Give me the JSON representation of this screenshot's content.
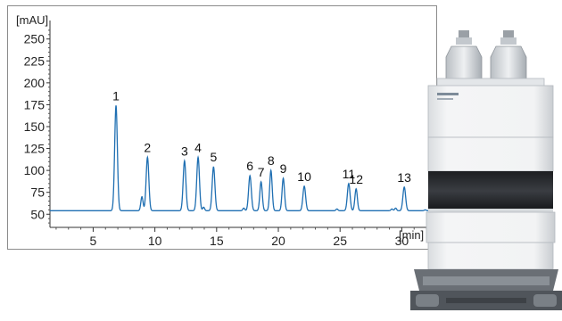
{
  "chart_data": {
    "type": "line",
    "title": "",
    "ylabel": "[mAU]",
    "xlabel": "[min]",
    "xlim": [
      1.5,
      32.5
    ],
    "ylim": [
      35,
      265
    ],
    "x_ticks": [
      5,
      10,
      15,
      20,
      25,
      30
    ],
    "y_ticks": [
      50,
      75,
      100,
      125,
      150,
      175,
      200,
      225,
      250
    ],
    "baseline": 54,
    "grid": false,
    "line_color": "#1f6fb2",
    "peaks": [
      {
        "label": "1",
        "x": 6.85,
        "y": 174,
        "width": 0.11
      },
      {
        "label": "",
        "x": 8.95,
        "y": 70,
        "width": 0.09
      },
      {
        "label": "2",
        "x": 9.4,
        "y": 115,
        "width": 0.11
      },
      {
        "label": "3",
        "x": 12.4,
        "y": 111,
        "width": 0.11
      },
      {
        "label": "4",
        "x": 13.5,
        "y": 115,
        "width": 0.11
      },
      {
        "label": "",
        "x": 13.95,
        "y": 58,
        "width": 0.08
      },
      {
        "label": "5",
        "x": 14.75,
        "y": 104,
        "width": 0.11
      },
      {
        "label": "",
        "x": 17.2,
        "y": 57,
        "width": 0.08
      },
      {
        "label": "6",
        "x": 17.7,
        "y": 94,
        "width": 0.11
      },
      {
        "label": "7",
        "x": 18.6,
        "y": 87,
        "width": 0.1
      },
      {
        "label": "8",
        "x": 19.4,
        "y": 100,
        "width": 0.1
      },
      {
        "label": "9",
        "x": 20.4,
        "y": 91,
        "width": 0.1
      },
      {
        "label": "10",
        "x": 22.1,
        "y": 82,
        "width": 0.11
      },
      {
        "label": "",
        "x": 24.75,
        "y": 56,
        "width": 0.08
      },
      {
        "label": "11",
        "x": 25.7,
        "y": 85,
        "width": 0.11
      },
      {
        "label": "12",
        "x": 26.3,
        "y": 79,
        "width": 0.1
      },
      {
        "label": "",
        "x": 29.2,
        "y": 56,
        "width": 0.08
      },
      {
        "label": "",
        "x": 29.5,
        "y": 57,
        "width": 0.08
      },
      {
        "label": "13",
        "x": 30.2,
        "y": 81,
        "width": 0.11
      },
      {
        "label": "",
        "x": 31.9,
        "y": 55,
        "width": 0.08
      }
    ]
  }
}
